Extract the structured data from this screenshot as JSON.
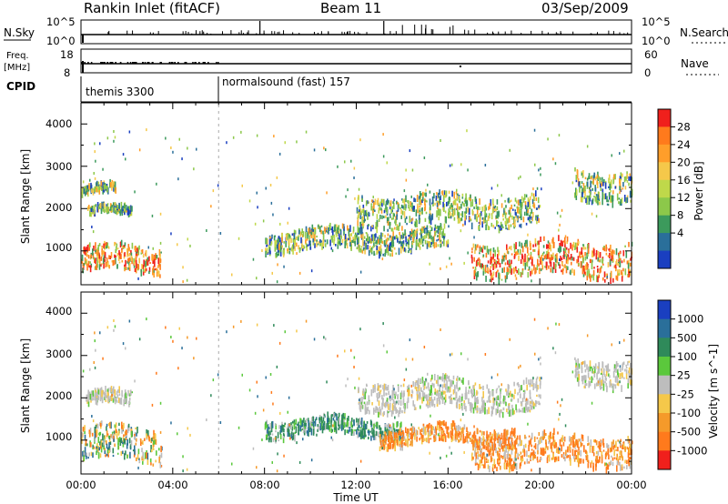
{
  "header": {
    "title": "Rankin Inlet (fitACF)",
    "beam": "Beam 11",
    "date": "03/Sep/2009"
  },
  "nsky": {
    "left_label": "N.Sky",
    "right_label": "N.Search",
    "left_ticks": [
      "10^5",
      "10^0"
    ],
    "right_ticks": [
      "10^5",
      "10^0"
    ]
  },
  "freq": {
    "left_label_1": "Freq.",
    "left_label_2": "[MHz]",
    "right_label": "Nave",
    "left_ticks": [
      "18",
      "8"
    ],
    "right_ticks": [
      "60",
      "0"
    ]
  },
  "cpid": {
    "label": "CPID",
    "segments": [
      {
        "start_hour": 0,
        "name": "themis 3300"
      },
      {
        "start_hour": 6,
        "name": "normalsound (fast) 157"
      }
    ]
  },
  "power_panel": {
    "ylabel": "Slant Range [km]",
    "yticks": [
      "4000",
      "3000",
      "2000",
      "1000"
    ],
    "colorbar_label": "Power [dB]",
    "colorbar_ticks": [
      "28",
      "24",
      "20",
      "16",
      "12",
      "8",
      "4"
    ],
    "colorbar_colors": [
      "#f0201c",
      "#ff7a1c",
      "#ff9e2a",
      "#f5c84a",
      "#bfd84a",
      "#8cc84a",
      "#3c9a5c",
      "#2a6f9a",
      "#1a3fc0"
    ]
  },
  "velocity_panel": {
    "ylabel": "Slant Range [km]",
    "yticks": [
      "4000",
      "3000",
      "2000",
      "1000"
    ],
    "colorbar_label": "Velocity [m s^-1]",
    "colorbar_ticks": [
      "1000",
      "500",
      "100",
      "25",
      "-25",
      "-100",
      "-500",
      "-1000"
    ],
    "colorbar_colors": [
      "#1a3fc0",
      "#2a6f9a",
      "#2f8a5a",
      "#5bc83c",
      "#bdbdbd",
      "#f5c84a",
      "#f59a2a",
      "#ff7a1c",
      "#f0201c"
    ]
  },
  "xaxis": {
    "ticks": [
      "00:00",
      "04:00",
      "08:00",
      "12:00",
      "16:00",
      "20:00",
      "00:00"
    ],
    "label": "Time UT"
  },
  "chart_data": [
    {
      "type": "heatmap",
      "title": "Power",
      "xlabel": "Time UT",
      "ylabel": "Slant Range [km]",
      "xlim": [
        0,
        24
      ],
      "ylim": [
        200,
        4500
      ],
      "colorbar": "Power [dB]",
      "colorbar_ticks": [
        4,
        8,
        12,
        16,
        20,
        24,
        28
      ],
      "bands": [
        {
          "from_hour": 0,
          "to_hour": 3.5,
          "range_km": [
            500,
            1100
          ],
          "level": "high"
        },
        {
          "from_hour": 0.2,
          "to_hour": 2.2,
          "range_km": [
            1800,
            2000
          ],
          "level": "mid"
        },
        {
          "from_hour": 0,
          "to_hour": 1.5,
          "range_km": [
            2300,
            2500
          ],
          "level": "mid"
        },
        {
          "from_hour": 8,
          "to_hour": 16,
          "range_km": [
            1000,
            1500
          ],
          "level": "mid"
        },
        {
          "from_hour": 12,
          "to_hour": 20,
          "range_km": [
            1600,
            2300
          ],
          "level": "mid"
        },
        {
          "from_hour": 17,
          "to_hour": 24,
          "range_km": [
            400,
            1200
          ],
          "level": "high"
        },
        {
          "from_hour": 21.5,
          "to_hour": 24,
          "range_km": [
            2200,
            2900
          ],
          "level": "mid"
        }
      ]
    },
    {
      "type": "heatmap",
      "title": "Velocity",
      "xlabel": "Time UT",
      "ylabel": "Slant Range [km]",
      "xlim": [
        0,
        24
      ],
      "ylim": [
        200,
        4500
      ],
      "colorbar": "Velocity [m s^-1]",
      "colorbar_ticks": [
        -1000,
        -500,
        -100,
        -25,
        25,
        100,
        500,
        1000
      ],
      "bands": [
        {
          "from_hour": 0,
          "to_hour": 3.5,
          "range_km": [
            500,
            1300
          ],
          "level": "mixed"
        },
        {
          "from_hour": 0.2,
          "to_hour": 2.2,
          "range_km": [
            1800,
            2100
          ],
          "level": "ground"
        },
        {
          "from_hour": 8,
          "to_hour": 14,
          "range_km": [
            1100,
            1500
          ],
          "level": "positive"
        },
        {
          "from_hour": 13,
          "to_hour": 19,
          "range_km": [
            900,
            1300
          ],
          "level": "negative"
        },
        {
          "from_hour": 12,
          "to_hour": 20,
          "range_km": [
            1700,
            2400
          ],
          "level": "ground"
        },
        {
          "from_hour": 17,
          "to_hour": 24,
          "range_km": [
            400,
            1100
          ],
          "level": "negative"
        },
        {
          "from_hour": 21.5,
          "to_hour": 24,
          "range_km": [
            2300,
            2900
          ],
          "level": "ground"
        }
      ]
    }
  ]
}
